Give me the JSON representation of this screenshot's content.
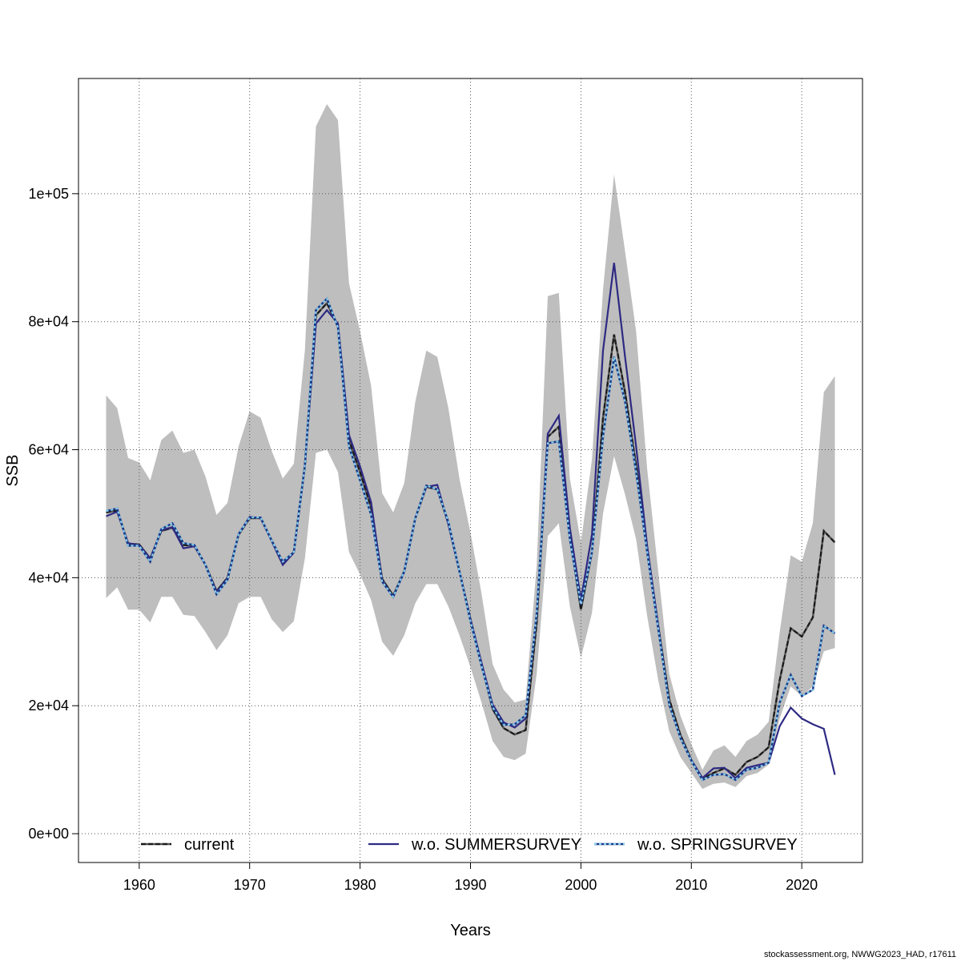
{
  "footer": "stockassessment.org, NWWG2023_HAD, r17611",
  "chart_data": {
    "type": "line",
    "xlabel": "Years",
    "ylabel": "SSB",
    "xlim": [
      1954.5,
      2025.5
    ],
    "ylim": [
      -4500,
      118000
    ],
    "x_ticks": [
      1960,
      1970,
      1980,
      1990,
      2000,
      2010,
      2020
    ],
    "y_ticks": [
      0,
      20000,
      40000,
      60000,
      80000,
      100000
    ],
    "y_tick_labels": [
      "0e+00",
      "2e+04",
      "4e+04",
      "6e+04",
      "8e+04",
      "1e+05"
    ],
    "grid": true,
    "legend_position": "bottom",
    "years": [
      1957,
      1958,
      1959,
      1960,
      1961,
      1962,
      1963,
      1964,
      1965,
      1966,
      1967,
      1968,
      1969,
      1970,
      1971,
      1972,
      1973,
      1974,
      1975,
      1976,
      1977,
      1978,
      1979,
      1980,
      1981,
      1982,
      1983,
      1984,
      1985,
      1986,
      1987,
      1988,
      1989,
      1990,
      1991,
      1992,
      1993,
      1994,
      1995,
      1996,
      1997,
      1998,
      1999,
      2000,
      2001,
      2002,
      2003,
      2004,
      2005,
      2006,
      2007,
      2008,
      2009,
      2010,
      2011,
      2012,
      2013,
      2014,
      2015,
      2016,
      2017,
      2018,
      2019,
      2020,
      2021,
      2022,
      2023
    ],
    "confidence_band": {
      "color": "#bebebe",
      "lower": [
        36800,
        38500,
        35000,
        35000,
        33000,
        37000,
        37000,
        34200,
        34000,
        31500,
        28700,
        31000,
        36000,
        37000,
        37000,
        33500,
        31500,
        33200,
        43000,
        59500,
        60000,
        56500,
        44000,
        40500,
        36500,
        30000,
        27800,
        31000,
        36000,
        39000,
        39000,
        35500,
        31000,
        26000,
        20500,
        14500,
        12000,
        11500,
        12500,
        25000,
        46500,
        48500,
        35500,
        27500,
        34500,
        50000,
        59000,
        53000,
        46000,
        34000,
        24000,
        16000,
        12000,
        9500,
        7000,
        7800,
        8000,
        7300,
        9000,
        9500,
        10800,
        18000,
        23000,
        21500,
        23000,
        28500,
        29000
      ],
      "upper": [
        68500,
        66500,
        58700,
        58000,
        55200,
        61500,
        63000,
        59500,
        60000,
        55800,
        49800,
        51700,
        60500,
        66000,
        65000,
        59800,
        55500,
        57800,
        75500,
        110500,
        114000,
        111500,
        86000,
        78500,
        70000,
        53200,
        50200,
        54800,
        67500,
        75500,
        74500,
        66500,
        55500,
        47000,
        37500,
        26500,
        22500,
        20500,
        21000,
        42000,
        84000,
        84500,
        55500,
        45500,
        58500,
        85000,
        103000,
        91000,
        78500,
        57000,
        41000,
        25000,
        18500,
        14000,
        10000,
        13000,
        13800,
        12000,
        14500,
        15500,
        17500,
        31500,
        43500,
        42500,
        48500,
        69000,
        71500
      ]
    },
    "series": [
      {
        "name": "current",
        "color": "#1a1a1a",
        "dash": "6,3",
        "values": [
          50200,
          50500,
          45300,
          45200,
          43000,
          47300,
          47800,
          45100,
          45000,
          42000,
          37900,
          40000,
          46700,
          49300,
          49300,
          45800,
          42200,
          44000,
          57500,
          81000,
          82900,
          79300,
          61500,
          56500,
          51000,
          39800,
          37200,
          41000,
          49300,
          54200,
          53800,
          48500,
          41000,
          33500,
          26500,
          19500,
          16500,
          15500,
          16200,
          33000,
          62000,
          63600,
          46500,
          35000,
          44000,
          65000,
          78000,
          69000,
          57500,
          44500,
          32500,
          21000,
          15500,
          11500,
          8600,
          9500,
          10200,
          9200,
          11200,
          12000,
          13500,
          24000,
          32100,
          30800,
          33800,
          47300,
          45500
        ]
      },
      {
        "name": "w.o. SUMMERSURVEY",
        "color": "#2e2a83",
        "dash": "",
        "values": [
          49600,
          50300,
          45400,
          45100,
          43000,
          47400,
          47900,
          44600,
          44900,
          42000,
          37800,
          39900,
          46800,
          49500,
          49300,
          45700,
          42000,
          43900,
          57600,
          79700,
          81800,
          79700,
          62300,
          57400,
          51800,
          39600,
          37000,
          40900,
          49300,
          54200,
          54500,
          48300,
          41000,
          33500,
          26700,
          20200,
          17400,
          16600,
          18000,
          34500,
          62500,
          65300,
          47800,
          36600,
          46800,
          75500,
          89200,
          74500,
          60500,
          45000,
          32500,
          20100,
          15100,
          11500,
          8700,
          10200,
          10300,
          8700,
          10300,
          10700,
          11100,
          16800,
          19700,
          18000,
          17100,
          16400,
          9200
        ]
      },
      {
        "name": "w.o. SPRINGSURVEY",
        "color": "#87ceeb",
        "dash": "3,3",
        "values": [
          50400,
          50800,
          45000,
          45000,
          42500,
          47600,
          48500,
          45400,
          45100,
          42000,
          37400,
          39700,
          46800,
          49400,
          49400,
          45800,
          42500,
          44000,
          57500,
          81800,
          83600,
          79100,
          60500,
          55200,
          49800,
          39400,
          37000,
          41000,
          49300,
          54400,
          53800,
          48700,
          41000,
          33200,
          26200,
          19800,
          17000,
          17100,
          18500,
          34500,
          61000,
          61300,
          46000,
          35800,
          44000,
          62000,
          74500,
          67500,
          56500,
          44000,
          32000,
          20200,
          15000,
          11400,
          8400,
          9200,
          9300,
          8400,
          10000,
          10300,
          11100,
          20500,
          24800,
          21500,
          22500,
          32500,
          31300
        ]
      }
    ]
  }
}
